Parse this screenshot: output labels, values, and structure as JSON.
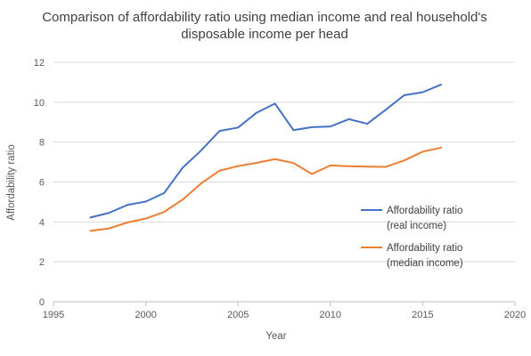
{
  "chart_data": {
    "type": "line",
    "title_line1": "Comparison of affordability ratio using median income and real household's",
    "title_line2": "disposable income per head",
    "xlabel": "Year",
    "ylabel": "Affordability ratio",
    "xlim": [
      1995,
      2020
    ],
    "ylim": [
      0,
      12
    ],
    "x_ticks": [
      1995,
      2000,
      2005,
      2010,
      2015,
      2020
    ],
    "y_ticks": [
      0,
      2,
      4,
      6,
      8,
      10,
      12
    ],
    "grid": "horizontal",
    "legend_position": "right",
    "x": [
      1997,
      1998,
      1999,
      2000,
      2001,
      2002,
      2003,
      2004,
      2005,
      2006,
      2007,
      2008,
      2009,
      2010,
      2011,
      2012,
      2013,
      2014,
      2015,
      2016
    ],
    "series": [
      {
        "legend_line1": "Affordability ratio",
        "legend_line2": "(real income)",
        "color": "#4472c4",
        "values": [
          4.22,
          4.45,
          4.85,
          5.02,
          5.45,
          6.72,
          7.58,
          8.56,
          8.73,
          9.47,
          9.93,
          8.6,
          8.75,
          8.78,
          9.15,
          8.92,
          9.62,
          10.35,
          10.5,
          10.88
        ]
      },
      {
        "legend_line1": "Affordability ratio",
        "legend_line2": "(median income)",
        "color": "#ed7d31",
        "values": [
          3.55,
          3.67,
          3.97,
          4.17,
          4.5,
          5.12,
          5.93,
          6.57,
          6.8,
          6.96,
          7.15,
          6.95,
          6.4,
          6.83,
          6.79,
          6.77,
          6.76,
          7.08,
          7.52,
          7.72
        ]
      }
    ]
  }
}
